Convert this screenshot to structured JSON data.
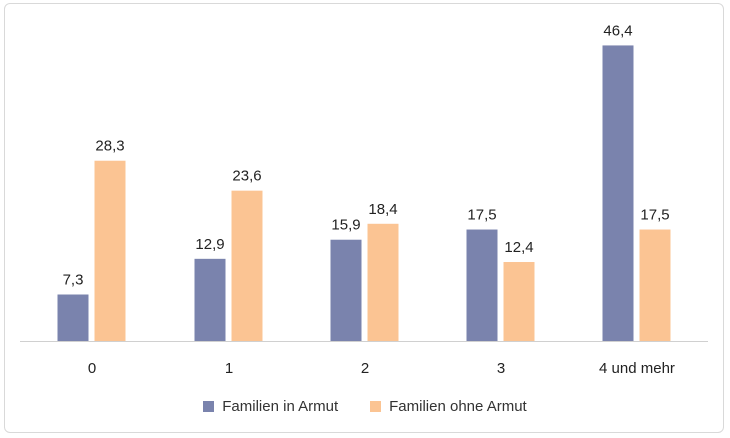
{
  "chart_data": {
    "type": "bar",
    "title": "",
    "xlabel": "",
    "ylabel": "",
    "categories": [
      "0",
      "1",
      "2",
      "3",
      "4 und mehr"
    ],
    "series": [
      {
        "name": "Familien in Armut",
        "color": "#7a83ad",
        "values": [
          7.3,
          12.9,
          15.9,
          17.5,
          46.4
        ],
        "labels": [
          "7,3",
          "12,9",
          "15,9",
          "17,5",
          "46,4"
        ]
      },
      {
        "name": "Familien ohne Armut",
        "color": "#fbc493",
        "values": [
          28.3,
          23.6,
          18.4,
          12.4,
          17.5
        ],
        "labels": [
          "28,3",
          "23,6",
          "18,4",
          "12,4",
          "17,5"
        ]
      }
    ],
    "ylim": [
      0,
      50
    ],
    "grid": false,
    "legend": "bottom"
  }
}
